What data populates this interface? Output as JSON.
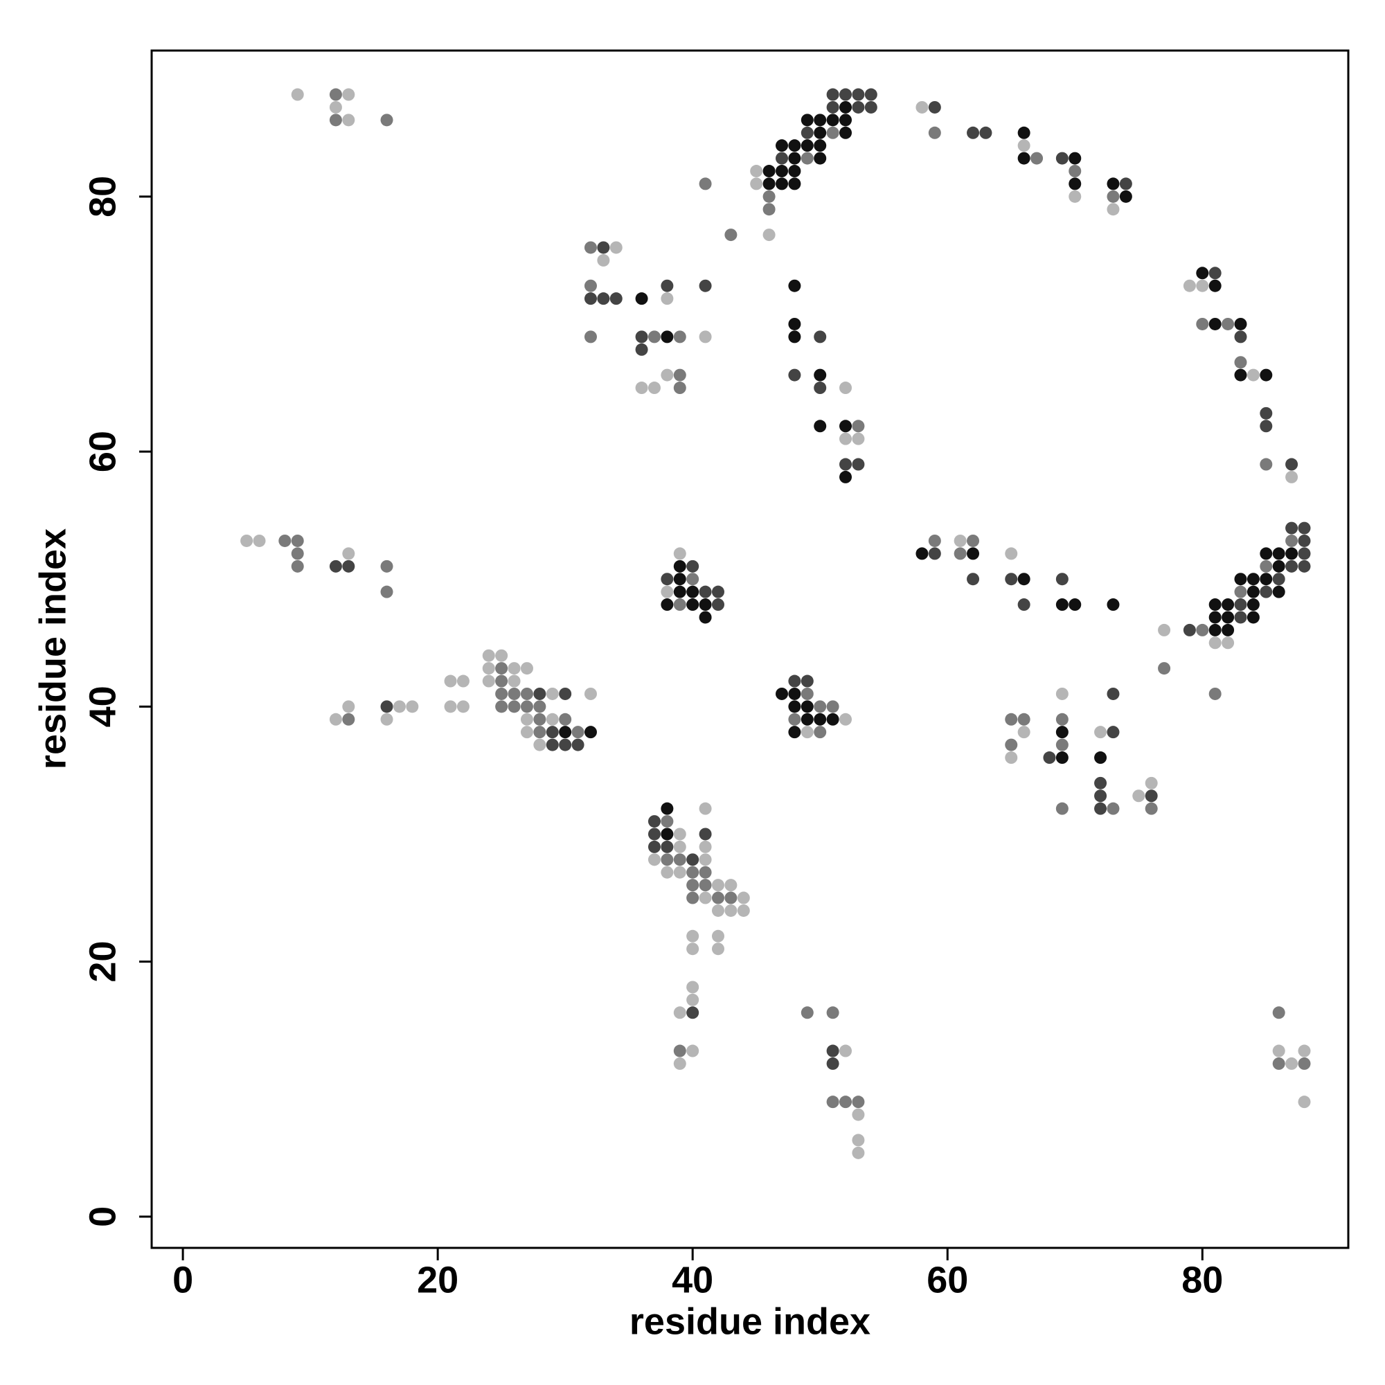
{
  "chart_data": {
    "type": "scatter",
    "xlabel": "residue index",
    "ylabel": "residue index",
    "xlim": [
      -2.45,
      91.45
    ],
    "ylim": [
      -2.45,
      91.45
    ],
    "xticks": [
      0,
      20,
      40,
      60,
      80
    ],
    "yticks": [
      0,
      20,
      40,
      60,
      80
    ],
    "series": [
      {
        "color": "#111111",
        "x": [
          30,
          32,
          36,
          38,
          46,
          47,
          48,
          46,
          47,
          48,
          47,
          48,
          49,
          50,
          48,
          50,
          49,
          50,
          51,
          52,
          50,
          52,
          52,
          66,
          66,
          70,
          70,
          73,
          74,
          80,
          81,
          81,
          83,
          83,
          85,
          85,
          86,
          87,
          86,
          83,
          84,
          85,
          84,
          86,
          81,
          82,
          84,
          81,
          82,
          84,
          81,
          82,
          58,
          62,
          66,
          69,
          70,
          73,
          39,
          39,
          39,
          40,
          38,
          40,
          41,
          41,
          47,
          48,
          48,
          49,
          49,
          50,
          51,
          48,
          48,
          48,
          48,
          50,
          50,
          52,
          52,
          69,
          69,
          72,
          38,
          38
        ],
        "values": [
          38,
          38,
          72,
          69,
          82,
          82,
          82,
          81,
          81,
          81,
          84,
          84,
          84,
          84,
          83,
          83,
          86,
          86,
          86,
          86,
          85,
          85,
          87,
          85,
          83,
          83,
          81,
          81,
          80,
          74,
          73,
          70,
          70,
          66,
          66,
          52,
          52,
          52,
          51,
          50,
          50,
          50,
          49,
          49,
          48,
          48,
          48,
          47,
          47,
          47,
          46,
          46,
          52,
          52,
          50,
          48,
          48,
          48,
          51,
          50,
          49,
          49,
          48,
          48,
          48,
          47,
          41,
          41,
          40,
          40,
          39,
          39,
          39,
          38,
          73,
          70,
          69,
          66,
          62,
          62,
          58,
          38,
          36,
          36,
          32,
          30
        ]
      },
      {
        "color": "#444444",
        "x": [
          12,
          13,
          16,
          28,
          30,
          29,
          29,
          30,
          31,
          33,
          32,
          33,
          34,
          36,
          36,
          38,
          41,
          51,
          52,
          53,
          54,
          51,
          53,
          54,
          49,
          47,
          59,
          62,
          63,
          69,
          74,
          81,
          83,
          85,
          85,
          87,
          87,
          88,
          88,
          88,
          87,
          88,
          86,
          85,
          83,
          83,
          79,
          59,
          62,
          65,
          66,
          69,
          38,
          40,
          41,
          42,
          42,
          48,
          49,
          50,
          48,
          50,
          52,
          53,
          68,
          73,
          73,
          72,
          72,
          72,
          76,
          37,
          37,
          37,
          38,
          40,
          41,
          40,
          51,
          51
        ],
        "values": [
          51,
          51,
          40,
          41,
          41,
          38,
          37,
          37,
          37,
          76,
          72,
          72,
          72,
          69,
          68,
          73,
          73,
          88,
          88,
          88,
          88,
          87,
          87,
          87,
          85,
          83,
          87,
          85,
          85,
          83,
          81,
          74,
          69,
          63,
          62,
          59,
          54,
          54,
          53,
          52,
          51,
          51,
          50,
          49,
          48,
          47,
          46,
          52,
          50,
          50,
          48,
          50,
          50,
          51,
          49,
          49,
          48,
          42,
          42,
          69,
          66,
          65,
          59,
          59,
          36,
          38,
          41,
          34,
          33,
          32,
          33,
          31,
          30,
          29,
          29,
          28,
          30,
          16,
          13,
          12
        ]
      },
      {
        "color": "#7a7a7a",
        "x": [
          12,
          16,
          9,
          9,
          16,
          16,
          13,
          25,
          25,
          25,
          26,
          27,
          25,
          26,
          27,
          28,
          28,
          30,
          28,
          31,
          32,
          32,
          32,
          37,
          39,
          39,
          41,
          43,
          46,
          46,
          51,
          49,
          59,
          67,
          70,
          73,
          80,
          82,
          83,
          85,
          87,
          85,
          83,
          80,
          81,
          77,
          59,
          62,
          61,
          40,
          39,
          49,
          50,
          51,
          48,
          50,
          53,
          65,
          66,
          65,
          69,
          69,
          69,
          73,
          76,
          38,
          38,
          39,
          40,
          41,
          40,
          41,
          40,
          42,
          43,
          39,
          49,
          51,
          51,
          52,
          53,
          86,
          88,
          86,
          8,
          9,
          12,
          39
        ],
        "values": [
          86,
          86,
          53,
          51,
          51,
          49,
          39,
          43,
          42,
          41,
          41,
          41,
          40,
          40,
          40,
          40,
          39,
          39,
          38,
          38,
          76,
          73,
          69,
          69,
          69,
          65,
          81,
          77,
          80,
          79,
          85,
          83,
          85,
          83,
          82,
          80,
          70,
          70,
          67,
          59,
          53,
          51,
          49,
          46,
          41,
          43,
          53,
          53,
          52,
          50,
          48,
          41,
          40,
          40,
          39,
          38,
          62,
          39,
          39,
          37,
          39,
          37,
          32,
          32,
          32,
          31,
          28,
          28,
          27,
          27,
          26,
          26,
          25,
          25,
          25,
          13,
          16,
          16,
          9,
          9,
          9,
          16,
          12,
          12,
          53,
          52,
          88,
          66
        ]
      },
      {
        "color": "#b5b5b5",
        "x": [
          9,
          13,
          12,
          13,
          5,
          6,
          13,
          12,
          13,
          16,
          17,
          18,
          21,
          22,
          21,
          22,
          24,
          25,
          24,
          26,
          27,
          24,
          26,
          29,
          27,
          29,
          27,
          28,
          32,
          34,
          33,
          38,
          38,
          36,
          37,
          41,
          45,
          45,
          46,
          58,
          66,
          70,
          73,
          79,
          80,
          84,
          87,
          81,
          82,
          77,
          61,
          65,
          39,
          38,
          52,
          49,
          52,
          52,
          53,
          66,
          65,
          69,
          72,
          75,
          76,
          39,
          39,
          37,
          41,
          38,
          39,
          42,
          43,
          41,
          44,
          42,
          43,
          44,
          41,
          41,
          40,
          40,
          42,
          42,
          40,
          40,
          39,
          40,
          39,
          52,
          53,
          53,
          53,
          86,
          88,
          87,
          88
        ],
        "values": [
          88,
          88,
          87,
          86,
          53,
          53,
          52,
          39,
          40,
          39,
          40,
          40,
          42,
          42,
          40,
          40,
          44,
          44,
          43,
          43,
          43,
          42,
          42,
          41,
          39,
          39,
          38,
          37,
          41,
          76,
          75,
          72,
          66,
          65,
          65,
          69,
          82,
          81,
          77,
          87,
          84,
          80,
          79,
          73,
          73,
          66,
          58,
          45,
          45,
          46,
          53,
          52,
          52,
          49,
          39,
          38,
          65,
          61,
          61,
          38,
          36,
          41,
          38,
          33,
          34,
          30,
          29,
          28,
          28,
          27,
          27,
          26,
          26,
          25,
          25,
          24,
          24,
          24,
          32,
          29,
          22,
          21,
          22,
          21,
          18,
          17,
          16,
          13,
          12,
          13,
          8,
          6,
          5,
          13,
          13,
          12,
          9
        ]
      }
    ]
  }
}
